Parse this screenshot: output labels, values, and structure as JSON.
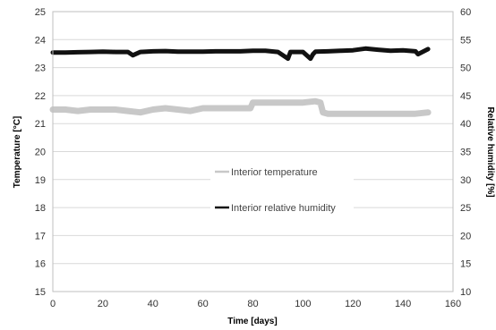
{
  "chart_data": {
    "type": "line",
    "xlabel": "Time [days]",
    "ylabel": "Temperature [°C]",
    "y2label": "Relative humidity [%]",
    "xlim": [
      0,
      160
    ],
    "ylim": [
      15,
      25
    ],
    "y2lim": [
      10,
      60
    ],
    "x_ticks": [
      "0",
      "20",
      "40",
      "60",
      "80",
      "100",
      "120",
      "140",
      "160"
    ],
    "y_ticks": [
      "15",
      "16",
      "17",
      "18",
      "19",
      "20",
      "21",
      "22",
      "23",
      "24",
      "25"
    ],
    "y2_ticks": [
      "10",
      "15",
      "20",
      "25",
      "30",
      "35",
      "40",
      "45",
      "50",
      "55",
      "60"
    ],
    "grid": "horizontal",
    "legend_position": "center",
    "series": [
      {
        "name": "Interior temperature",
        "axis": "left",
        "color": "#c8c8c8",
        "x": [
          0,
          5,
          10,
          15,
          20,
          25,
          30,
          35,
          40,
          45,
          50,
          55,
          60,
          65,
          70,
          75,
          79,
          80,
          85,
          90,
          95,
          100,
          105,
          107,
          108,
          110,
          115,
          120,
          125,
          130,
          135,
          140,
          145,
          150
        ],
        "y": [
          21.5,
          21.5,
          21.45,
          21.5,
          21.5,
          21.5,
          21.45,
          21.4,
          21.5,
          21.55,
          21.5,
          21.45,
          21.55,
          21.55,
          21.55,
          21.55,
          21.55,
          21.75,
          21.75,
          21.75,
          21.75,
          21.75,
          21.8,
          21.75,
          21.4,
          21.35,
          21.35,
          21.35,
          21.35,
          21.35,
          21.35,
          21.35,
          21.35,
          21.4
        ]
      },
      {
        "name": "Interior relative humidity",
        "axis": "right",
        "color": "#111111",
        "x": [
          0,
          5,
          10,
          15,
          20,
          25,
          30,
          32,
          35,
          40,
          45,
          50,
          55,
          60,
          65,
          70,
          75,
          80,
          85,
          90,
          94,
          95,
          100,
          103,
          104,
          105,
          110,
          115,
          120,
          125,
          130,
          135,
          140,
          145,
          146,
          150
        ],
        "y": [
          52.7,
          52.7,
          52.75,
          52.8,
          52.85,
          52.8,
          52.8,
          52.2,
          52.8,
          52.9,
          52.95,
          52.85,
          52.85,
          52.85,
          52.9,
          52.9,
          52.9,
          53.0,
          53.0,
          52.8,
          51.6,
          52.8,
          52.8,
          51.6,
          52.4,
          52.85,
          52.9,
          53.0,
          53.1,
          53.4,
          53.2,
          53.0,
          53.1,
          52.9,
          52.4,
          53.3
        ]
      }
    ]
  }
}
